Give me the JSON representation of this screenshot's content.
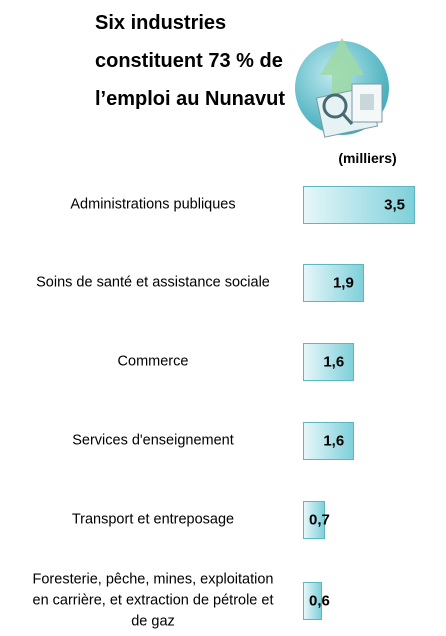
{
  "chart_data": {
    "type": "bar",
    "orientation": "horizontal",
    "title": "Six industries constituent 73 % de l’emploi au Nunavut",
    "unit_label": "(milliers)",
    "categories": [
      "Administrations publiques",
      "Soins de santé et assistance sociale",
      "Commerce",
      "Services d'enseignement",
      "Transport et entreposage",
      "Foresterie, pêche, mines, exploitation en carrière, et extraction de pétrole et de gaz"
    ],
    "values": [
      3.5,
      1.9,
      1.6,
      1.6,
      0.7,
      0.6
    ],
    "value_labels": [
      "3,5",
      "1,9",
      "1,6",
      "1,6",
      "0,7",
      "0,6"
    ],
    "color": "#7fd0da"
  }
}
